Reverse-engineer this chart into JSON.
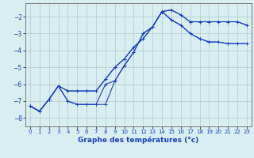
{
  "background_color": "#d8eef0",
  "grid_color": "#b0c8d0",
  "line_color": "#1a3fc4",
  "marker_color": "#1a3fc4",
  "xlabel": "Graphe des températures (°c)",
  "xlabel_fontsize": 6.5,
  "xlim": [
    -0.5,
    23.5
  ],
  "ylim": [
    -8.5,
    -1.2
  ],
  "yticks": [
    -8,
    -7,
    -6,
    -5,
    -4,
    -3,
    -2
  ],
  "xticks": [
    0,
    1,
    2,
    3,
    4,
    5,
    6,
    7,
    8,
    9,
    10,
    11,
    12,
    13,
    14,
    15,
    16,
    17,
    18,
    19,
    20,
    21,
    22,
    23
  ],
  "tick_fontsize": 5.0,
  "series": [
    {
      "x": [
        0,
        1,
        2,
        3,
        4,
        5,
        6,
        7,
        8,
        9,
        10,
        11,
        12,
        13,
        14,
        15,
        16,
        17,
        18,
        19,
        20,
        21,
        22,
        23
      ],
      "y": [
        -7.3,
        -7.6,
        -6.9,
        -6.1,
        -7.0,
        -7.2,
        -7.2,
        -7.2,
        -7.2,
        -5.8,
        -4.9,
        -4.1,
        -3.0,
        -2.6,
        -1.7,
        -1.6,
        -1.9,
        -2.3,
        -2.3,
        -2.3,
        -2.3,
        -2.3,
        -2.3,
        -2.5
      ]
    },
    {
      "x": [
        0,
        1,
        2,
        3,
        4,
        5,
        6,
        7,
        8,
        9,
        10,
        11,
        12,
        13,
        14,
        15,
        16,
        17,
        18,
        19,
        20,
        21,
        22,
        23
      ],
      "y": [
        -7.3,
        -7.6,
        -6.9,
        -6.1,
        -6.4,
        -6.4,
        -6.4,
        -6.4,
        -5.7,
        -5.0,
        -4.5,
        -3.8,
        -3.3,
        -2.6,
        -1.7,
        -2.2,
        -2.5,
        -3.0,
        -3.3,
        -3.5,
        -3.5,
        -3.6,
        -3.6,
        -3.6
      ]
    },
    {
      "x": [
        0,
        1,
        2,
        3,
        4,
        5,
        6,
        7,
        8,
        9,
        10,
        11,
        12,
        13,
        14,
        15,
        16,
        17,
        18,
        19,
        20,
        21,
        22,
        23
      ],
      "y": [
        -7.3,
        -7.6,
        -6.9,
        -6.1,
        -6.4,
        -6.4,
        -6.4,
        -6.4,
        -5.7,
        -5.0,
        -4.5,
        -3.8,
        -3.3,
        -2.6,
        -1.7,
        -1.6,
        -1.9,
        -2.3,
        -2.3,
        -2.3,
        -2.3,
        -2.3,
        -2.3,
        -2.5
      ]
    },
    {
      "x": [
        0,
        1,
        2,
        3,
        4,
        5,
        6,
        7,
        8,
        9,
        10,
        11,
        12,
        13,
        14,
        15,
        16,
        17,
        18,
        19,
        20,
        21,
        22,
        23
      ],
      "y": [
        -7.3,
        -7.6,
        -6.9,
        -6.1,
        -7.0,
        -7.2,
        -7.2,
        -7.2,
        -6.0,
        -5.8,
        -4.9,
        -4.1,
        -3.0,
        -2.6,
        -1.7,
        -2.2,
        -2.5,
        -3.0,
        -3.3,
        -3.5,
        -3.5,
        -3.6,
        -3.6,
        -3.6
      ]
    }
  ]
}
